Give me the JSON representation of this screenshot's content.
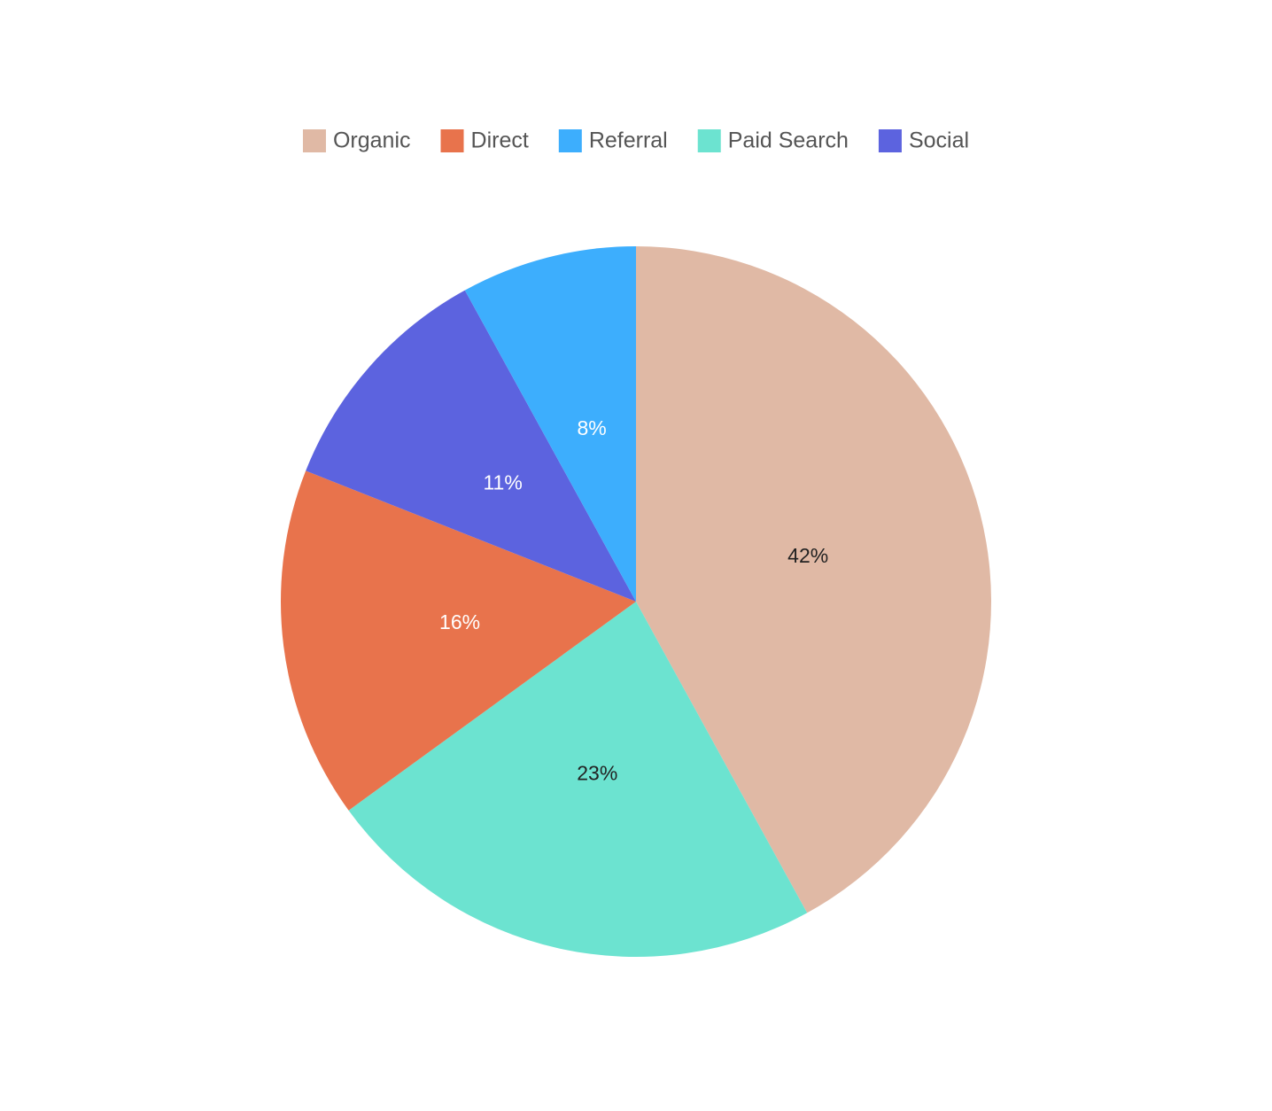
{
  "chart_data": {
    "type": "pie",
    "categories": [
      "Organic",
      "Direct",
      "Referral",
      "Paid Search",
      "Social"
    ],
    "values": [
      42,
      16,
      8,
      23,
      11
    ],
    "value_labels": [
      "42%",
      "16%",
      "8%",
      "23%",
      "11%"
    ],
    "colors": [
      "#e0b9a5",
      "#e8734c",
      "#3daefd",
      "#6ce3d0",
      "#5c63df"
    ],
    "legend": "top"
  }
}
